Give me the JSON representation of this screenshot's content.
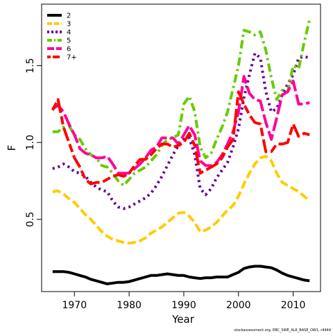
{
  "chart_data": {
    "type": "line",
    "title": "",
    "xlabel": "Year",
    "ylabel": "F",
    "xlim": [
      1964,
      2015
    ],
    "ylim": [
      0.03,
      1.9
    ],
    "xticks": [
      1970,
      1980,
      1990,
      2000,
      2010
    ],
    "yticks": [
      0.5,
      1.0,
      1.5
    ],
    "xtick_labels": [
      "1970",
      "1980",
      "1990",
      "2000",
      "2010"
    ],
    "ytick_labels": [
      "0.5",
      "1.0",
      "1.5"
    ],
    "grid": false,
    "legend_position": "top-left",
    "footer": "stockassessment.org, EBC_SWE_ALK_BASE_OW1, r4444",
    "x": [
      1966,
      1967,
      1968,
      1969,
      1970,
      1971,
      1972,
      1973,
      1974,
      1975,
      1976,
      1977,
      1978,
      1979,
      1980,
      1981,
      1982,
      1983,
      1984,
      1985,
      1986,
      1987,
      1988,
      1989,
      1990,
      1991,
      1992,
      1993,
      1994,
      1995,
      1996,
      1997,
      1998,
      1999,
      2000,
      2001,
      2002,
      2003,
      2004,
      2005,
      2006,
      2007,
      2008,
      2009,
      2010,
      2011,
      2012,
      2013
    ],
    "series": [
      {
        "name": "2",
        "color": "#000000",
        "dash": "solid",
        "values": [
          0.16,
          0.16,
          0.16,
          0.155,
          0.145,
          0.135,
          0.125,
          0.11,
          0.1,
          0.09,
          0.08,
          0.085,
          0.09,
          0.09,
          0.095,
          0.105,
          0.115,
          0.125,
          0.135,
          0.135,
          0.14,
          0.145,
          0.14,
          0.135,
          0.135,
          0.125,
          0.12,
          0.115,
          0.12,
          0.12,
          0.125,
          0.125,
          0.125,
          0.14,
          0.155,
          0.18,
          0.19,
          0.195,
          0.195,
          0.19,
          0.185,
          0.17,
          0.15,
          0.135,
          0.125,
          0.115,
          0.105,
          0.1
        ]
      },
      {
        "name": "3",
        "color": "#FFCC00",
        "dash": "dashed",
        "values": [
          0.68,
          0.685,
          0.665,
          0.635,
          0.61,
          0.57,
          0.53,
          0.5,
          0.46,
          0.42,
          0.39,
          0.37,
          0.36,
          0.35,
          0.345,
          0.35,
          0.36,
          0.38,
          0.41,
          0.43,
          0.45,
          0.48,
          0.51,
          0.54,
          0.545,
          0.52,
          0.48,
          0.42,
          0.43,
          0.45,
          0.48,
          0.52,
          0.56,
          0.59,
          0.65,
          0.73,
          0.8,
          0.86,
          0.9,
          0.91,
          0.88,
          0.8,
          0.74,
          0.72,
          0.7,
          0.68,
          0.65,
          0.62
        ]
      },
      {
        "name": "4",
        "color": "#660099",
        "dash": "dotted",
        "values": [
          0.83,
          0.84,
          0.86,
          0.84,
          0.81,
          0.8,
          0.78,
          0.74,
          0.71,
          0.69,
          0.68,
          0.62,
          0.58,
          0.57,
          0.58,
          0.6,
          0.62,
          0.64,
          0.67,
          0.72,
          0.78,
          0.85,
          0.92,
          0.98,
          1.02,
          1.03,
          0.92,
          0.7,
          0.66,
          0.7,
          0.77,
          0.82,
          0.87,
          0.97,
          1.09,
          1.29,
          1.44,
          1.58,
          1.55,
          1.33,
          1.2,
          1.22,
          1.31,
          1.38,
          1.44,
          1.55,
          1.56,
          1.55
        ]
      },
      {
        "name": "5",
        "color": "#66CC00",
        "dash": "dashdot",
        "values": [
          1.07,
          1.07,
          1.1,
          1.11,
          1.05,
          1.02,
          0.96,
          0.92,
          0.9,
          0.85,
          0.84,
          0.8,
          0.75,
          0.72,
          0.76,
          0.8,
          0.82,
          0.84,
          0.88,
          0.92,
          0.98,
          1.02,
          1.03,
          1.05,
          1.25,
          1.3,
          1.2,
          0.97,
          0.9,
          0.93,
          1.02,
          1.1,
          1.2,
          1.35,
          1.5,
          1.73,
          1.72,
          1.7,
          1.72,
          1.6,
          1.42,
          1.28,
          1.34,
          1.33,
          1.5,
          1.48,
          1.65,
          1.8
        ]
      },
      {
        "name": "6",
        "color": "#FF0099",
        "dash": "longdash",
        "values": [
          1.22,
          1.24,
          1.2,
          1.12,
          1.05,
          0.96,
          0.93,
          0.92,
          0.9,
          0.9,
          0.91,
          0.86,
          0.8,
          0.8,
          0.8,
          0.83,
          0.86,
          0.9,
          0.95,
          0.97,
          1.03,
          1.03,
          1.03,
          0.99,
          1.05,
          1.11,
          1.05,
          0.88,
          0.85,
          0.85,
          0.87,
          0.92,
          0.99,
          1.07,
          1.2,
          1.43,
          1.32,
          1.28,
          1.27,
          1.13,
          1.02,
          1.16,
          1.31,
          1.33,
          1.4,
          1.25,
          1.25,
          1.26
        ]
      },
      {
        "name": "7+",
        "color": "#FF0000",
        "dash": "twodash",
        "values": [
          1.21,
          1.28,
          1.1,
          1.0,
          0.9,
          0.84,
          0.76,
          0.73,
          0.74,
          0.74,
          0.76,
          0.78,
          0.79,
          0.78,
          0.8,
          0.85,
          0.89,
          0.89,
          0.92,
          0.96,
          0.99,
          0.99,
          0.97,
          0.98,
          1.0,
          1.06,
          0.98,
          0.8,
          0.82,
          0.84,
          0.86,
          0.9,
          0.97,
          1.02,
          1.33,
          1.25,
          1.18,
          1.13,
          1.12,
          0.94,
          0.94,
          0.99,
          0.99,
          1.0,
          1.12,
          1.04,
          1.06,
          1.05
        ]
      }
    ]
  }
}
